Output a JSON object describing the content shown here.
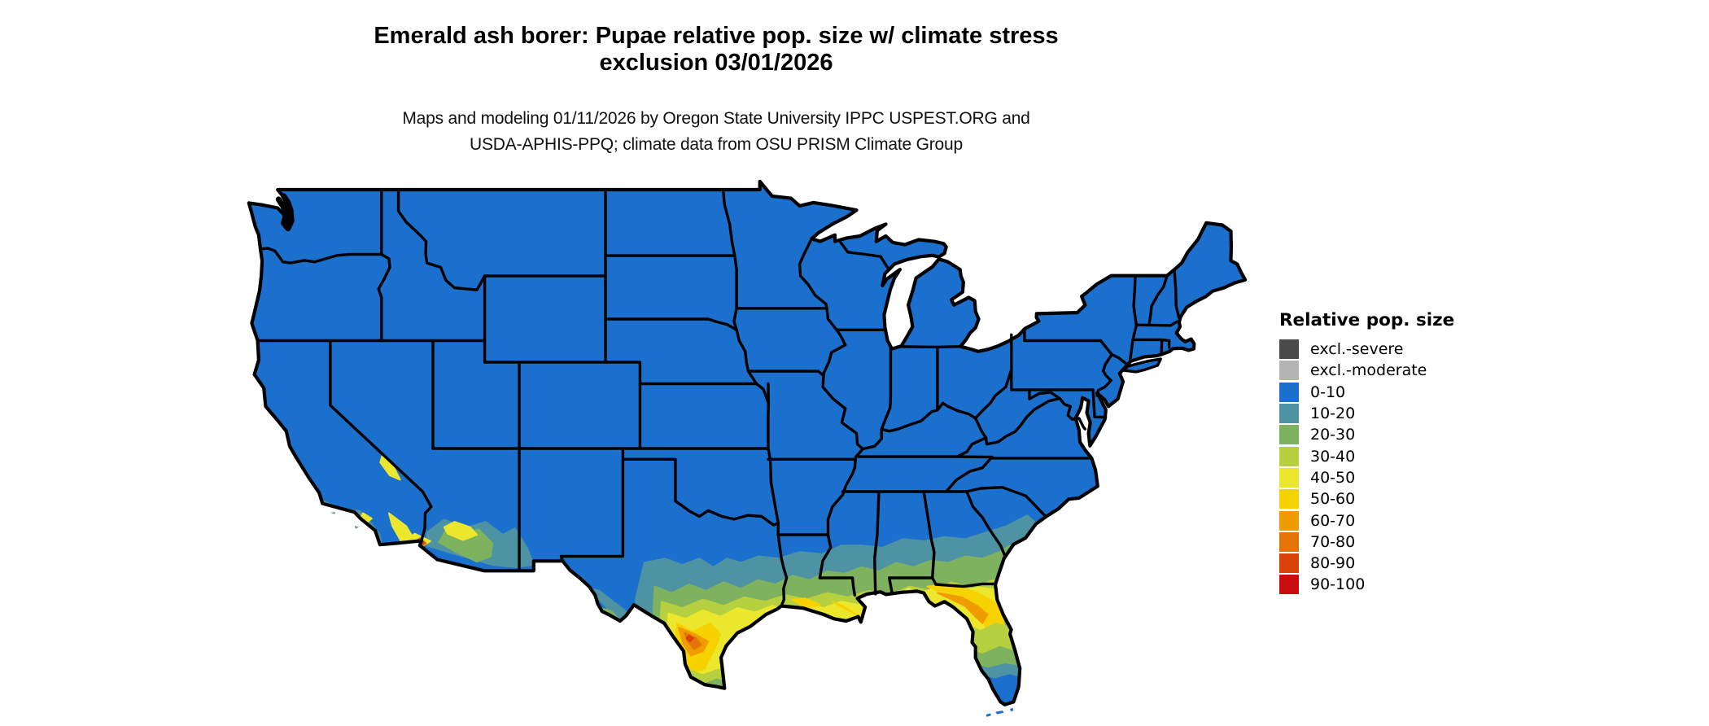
{
  "header": {
    "title_line1": "Emerald ash borer: Pupae relative pop. size w/ climate stress",
    "title_line2": "exclusion 03/01/2026",
    "subtitle_line1": "Maps and modeling 01/11/2026 by Oregon State University IPPC USPEST.ORG and",
    "subtitle_line2": "USDA-APHIS-PPQ; climate data from OSU PRISM Climate Group"
  },
  "legend": {
    "title": "Relative pop. size",
    "items": [
      {
        "key": "xs",
        "label": "excl.-severe",
        "color": "#4a4a4a"
      },
      {
        "key": "xm",
        "label": "excl.-moderate",
        "color": "#b4b4b4"
      },
      {
        "key": "c0",
        "label": "0-10",
        "color": "#1c70cd"
      },
      {
        "key": "c1",
        "label": "10-20",
        "color": "#4e93a3"
      },
      {
        "key": "c2",
        "label": "20-30",
        "color": "#7eb25f"
      },
      {
        "key": "c3",
        "label": "30-40",
        "color": "#b7d03f"
      },
      {
        "key": "c4",
        "label": "40-50",
        "color": "#ebe72c"
      },
      {
        "key": "c5",
        "label": "50-60",
        "color": "#f6d200"
      },
      {
        "key": "c6",
        "label": "60-70",
        "color": "#f09c00"
      },
      {
        "key": "c7",
        "label": "70-80",
        "color": "#e37407"
      },
      {
        "key": "c8",
        "label": "80-90",
        "color": "#d94108"
      },
      {
        "key": "c9",
        "label": "90-100",
        "color": "#c90d0e"
      }
    ]
  },
  "map": {
    "area": "Contiguous United States",
    "background_color": "#ffffff",
    "boundary_color": "#000000"
  }
}
